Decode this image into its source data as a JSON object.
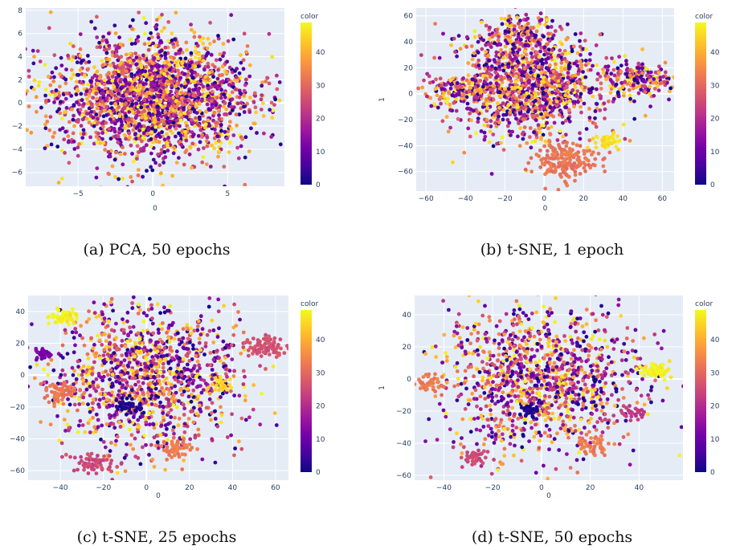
{
  "colors": {
    "plot_bg": "#E5ECF6",
    "grid": "#ffffff",
    "scale": [
      "#0d0887",
      "#46039f",
      "#7201a8",
      "#9c179e",
      "#bd3786",
      "#d8576b",
      "#ed7953",
      "#fb9f3a",
      "#fdca26",
      "#f0f921"
    ]
  },
  "panels": [
    {
      "caption": "(a) PCA, 50 epochs",
      "xlabel": "0",
      "ylabel": "",
      "colorbar": {
        "title": "color",
        "ticks": [
          "0",
          "10",
          "20",
          "30",
          "40"
        ]
      },
      "xticks": [
        "−5",
        "0",
        "5"
      ],
      "yticks": [
        "8",
        "6",
        "4",
        "2",
        "0",
        "−2",
        "−4",
        "−6"
      ],
      "chart_data": {
        "type": "scatter",
        "xlim": [
          -8.5,
          8.8
        ],
        "ylim": [
          -7.2,
          8.2
        ],
        "xtick_values": [
          -5,
          0,
          5
        ],
        "ytick_values": [
          8,
          6,
          4,
          2,
          0,
          -2,
          -4,
          -6
        ],
        "color_range": [
          0,
          49
        ],
        "colorscale": "plasma",
        "clusters": [
          {
            "x": 0,
            "y": 0.5,
            "sx": 3.3,
            "sy": 2.6,
            "n": 2200,
            "color": "mixed"
          }
        ]
      }
    },
    {
      "caption": "(b) t-SNE, 1 epoch",
      "xlabel": "0",
      "ylabel": "1",
      "colorbar": {
        "title": "color",
        "ticks": [
          "0",
          "10",
          "20",
          "30",
          "40"
        ]
      },
      "xticks": [
        "−60",
        "−40",
        "−20",
        "0",
        "20",
        "40",
        "60"
      ],
      "yticks": [
        "60",
        "40",
        "20",
        "0",
        "−20",
        "−40",
        "−60"
      ],
      "chart_data": {
        "type": "scatter",
        "xlim": [
          -65,
          66
        ],
        "ylim": [
          -75,
          66
        ],
        "xtick_values": [
          -60,
          -40,
          -20,
          0,
          20,
          40,
          60
        ],
        "ytick_values": [
          60,
          40,
          20,
          0,
          -20,
          -40,
          -60
        ],
        "color_range": [
          0,
          49
        ],
        "colorscale": "plasma",
        "clusters": [
          {
            "x": -8,
            "y": 5,
            "sx": 18,
            "sy": 20,
            "n": 1200,
            "color": "mixed"
          },
          {
            "x": -45,
            "y": 2,
            "sx": 8,
            "sy": 6,
            "n": 150,
            "color": "mixed"
          },
          {
            "x": 48,
            "y": 10,
            "sx": 9,
            "sy": 7,
            "n": 200,
            "color": "mixed"
          },
          {
            "x": 10,
            "y": -52,
            "sx": 8,
            "sy": 7,
            "n": 180,
            "color": 32
          },
          {
            "x": -15,
            "y": 45,
            "sx": 10,
            "sy": 8,
            "n": 150,
            "color": "mixed"
          },
          {
            "x": 32,
            "y": -37,
            "sx": 3,
            "sy": 3,
            "n": 50,
            "color": 46
          }
        ]
      }
    },
    {
      "caption": "(c) t-SNE, 25 epochs",
      "xlabel": "0",
      "ylabel": "",
      "colorbar": {
        "title": "color",
        "ticks": [
          "0",
          "10",
          "20",
          "30",
          "40"
        ]
      },
      "xticks": [
        "−40",
        "−20",
        "0",
        "20",
        "40",
        "60"
      ],
      "yticks": [
        "40",
        "20",
        "0",
        "−20",
        "−40",
        "−60"
      ],
      "chart_data": {
        "type": "scatter",
        "xlim": [
          -55,
          66
        ],
        "ylim": [
          -66,
          50
        ],
        "xtick_values": [
          -40,
          -20,
          0,
          20,
          40,
          60
        ],
        "ytick_values": [
          40,
          20,
          0,
          -20,
          -40,
          -60
        ],
        "color_range": [
          0,
          49
        ],
        "colorscale": "plasma",
        "clusters": [
          {
            "x": 0,
            "y": -2,
            "sx": 22,
            "sy": 22,
            "n": 1200,
            "color": "mixed"
          },
          {
            "x": -38,
            "y": 36,
            "sx": 3,
            "sy": 3,
            "n": 50,
            "color": 48
          },
          {
            "x": 55,
            "y": 18,
            "sx": 5,
            "sy": 3,
            "n": 90,
            "color": 26
          },
          {
            "x": -48,
            "y": 13,
            "sx": 2,
            "sy": 2,
            "n": 30,
            "color": 12
          },
          {
            "x": -8,
            "y": -20,
            "sx": 3,
            "sy": 3,
            "n": 40,
            "color": 2
          },
          {
            "x": -24,
            "y": -55,
            "sx": 5,
            "sy": 3,
            "n": 60,
            "color": 25
          },
          {
            "x": 14,
            "y": -46,
            "sx": 4,
            "sy": 3,
            "n": 50,
            "color": 33
          },
          {
            "x": 35,
            "y": -6,
            "sx": 2,
            "sy": 2,
            "n": 30,
            "color": 45
          },
          {
            "x": -40,
            "y": -10,
            "sx": 4,
            "sy": 3,
            "n": 60,
            "color": 32
          }
        ]
      }
    },
    {
      "caption": "(d) t-SNE, 50 epochs",
      "xlabel": "0",
      "ylabel": "1",
      "colorbar": {
        "title": "color",
        "ticks": [
          "0",
          "10",
          "20",
          "30",
          "40"
        ]
      },
      "xticks": [
        "−40",
        "−20",
        "0",
        "20",
        "40"
      ],
      "yticks": [
        "40",
        "20",
        "0",
        "−20",
        "−40",
        "−60"
      ],
      "chart_data": {
        "type": "scatter",
        "xlim": [
          -52,
          58
        ],
        "ylim": [
          -63,
          52
        ],
        "xtick_values": [
          -40,
          -20,
          0,
          20,
          40
        ],
        "ytick_values": [
          40,
          20,
          0,
          -20,
          -40,
          -60
        ],
        "color_range": [
          0,
          49
        ],
        "colorscale": "plasma",
        "clusters": [
          {
            "x": 0,
            "y": 0,
            "sx": 20,
            "sy": 22,
            "n": 1200,
            "color": "mixed"
          },
          {
            "x": 46,
            "y": 5,
            "sx": 3,
            "sy": 2,
            "n": 60,
            "color": 48
          },
          {
            "x": -5,
            "y": -20,
            "sx": 2,
            "sy": 2,
            "n": 30,
            "color": 2
          },
          {
            "x": -46,
            "y": -3,
            "sx": 3,
            "sy": 3,
            "n": 40,
            "color": 33
          },
          {
            "x": -28,
            "y": -50,
            "sx": 3,
            "sy": 3,
            "n": 40,
            "color": 25
          },
          {
            "x": 20,
            "y": -40,
            "sx": 4,
            "sy": 3,
            "n": 50,
            "color": 33
          },
          {
            "x": 38,
            "y": -22,
            "sx": 3,
            "sy": 2,
            "n": 30,
            "color": 22
          }
        ]
      }
    }
  ]
}
